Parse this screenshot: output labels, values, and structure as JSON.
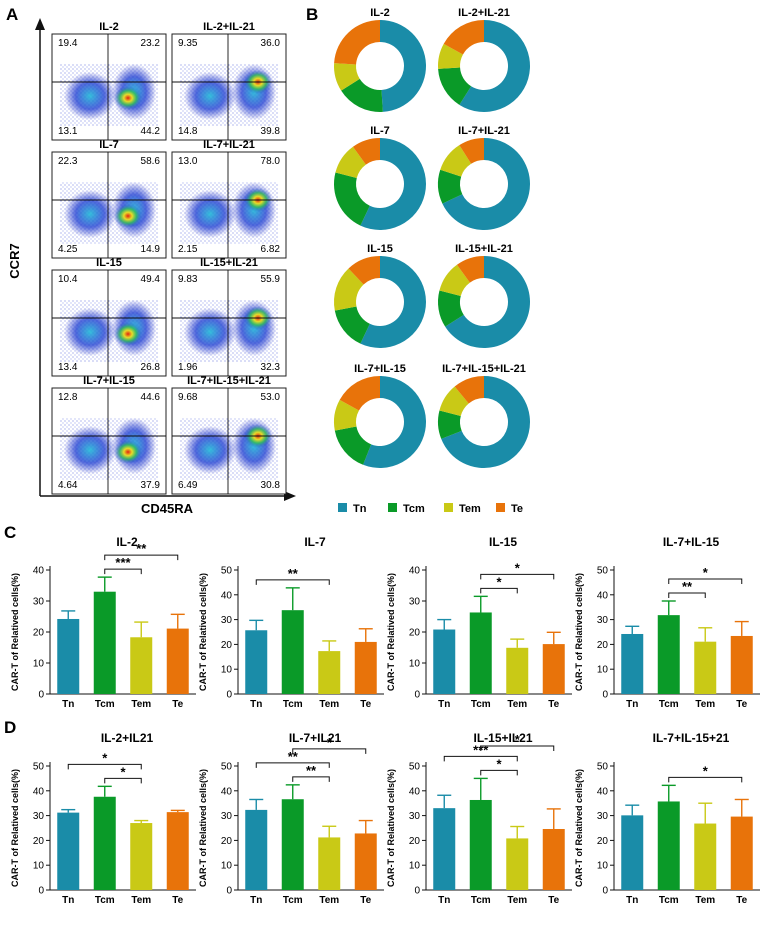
{
  "panel_labels": [
    "A",
    "B",
    "C",
    "D"
  ],
  "colors": {
    "Tn": "#1a8ca8",
    "Tcm": "#0a9a28",
    "Tem": "#c9c916",
    "Te": "#e8730a",
    "frame": "#222222",
    "text": "#111111"
  },
  "flow": {
    "y_axis_label": "CCR7",
    "x_axis_label": "CD45RA",
    "plots": [
      {
        "title": "IL-2",
        "q": [
          "19.4",
          "23.2",
          "13.1",
          "44.2"
        ]
      },
      {
        "title": "IL-2+IL-21",
        "q": [
          "9.35",
          "36.0",
          "14.8",
          "39.8"
        ]
      },
      {
        "title": "IL-7",
        "q": [
          "22.3",
          "58.6",
          "4.25",
          "14.9"
        ]
      },
      {
        "title": "IL-7+IL-21",
        "q": [
          "13.0",
          "78.0",
          "2.15",
          "6.82"
        ]
      },
      {
        "title": "IL-15",
        "q": [
          "10.4",
          "49.4",
          "13.4",
          "26.8"
        ]
      },
      {
        "title": "IL-15+IL-21",
        "q": [
          "9.83",
          "55.9",
          "1.96",
          "32.3"
        ]
      },
      {
        "title": "IL-7+IL-15",
        "q": [
          "12.8",
          "44.6",
          "4.64",
          "37.9"
        ]
      },
      {
        "title": "IL-7+IL-15+IL-21",
        "q": [
          "9.68",
          "53.0",
          "6.49",
          "30.8"
        ]
      }
    ]
  },
  "donut_legend": [
    "Tn",
    "Tcm",
    "Tem",
    "Te"
  ],
  "chart_data": [
    {
      "type": "pie",
      "panel": "B",
      "categories": [
        "Tn",
        "Tcm",
        "Tem",
        "Te"
      ],
      "charts": [
        {
          "title": "IL-2",
          "values": [
            49,
            17,
            10,
            24
          ]
        },
        {
          "title": "IL-2+IL-21",
          "values": [
            59,
            15,
            9,
            17
          ]
        },
        {
          "title": "IL-7",
          "values": [
            57,
            22,
            11,
            10
          ]
        },
        {
          "title": "IL-7+IL-21",
          "values": [
            68,
            12,
            11,
            9
          ]
        },
        {
          "title": "IL-15",
          "values": [
            57,
            15,
            16,
            12
          ]
        },
        {
          "title": "IL-15+IL-21",
          "values": [
            66,
            13,
            11,
            10
          ]
        },
        {
          "title": "IL-7+IL-15",
          "values": [
            56,
            16,
            11,
            17
          ]
        },
        {
          "title": "IL-7+IL-15+IL-21",
          "values": [
            69,
            10,
            10,
            11
          ]
        }
      ]
    },
    {
      "type": "bar",
      "panel": "C/D",
      "categories": [
        "Tn",
        "Tcm",
        "Tem",
        "Te"
      ],
      "ylabel": "CAR-T of Relatived cells(%)",
      "charts": [
        {
          "title": "IL-2",
          "ylim": [
            0,
            40
          ],
          "yticks": [
            0,
            10,
            20,
            30,
            40
          ],
          "values": [
            24.2,
            33.0,
            18.3,
            21.1
          ],
          "errors": [
            2.6,
            4.7,
            4.9,
            4.6
          ],
          "sig": [
            {
              "from": 1,
              "to": 2,
              "label": "***"
            },
            {
              "from": 1,
              "to": 3,
              "label": "**"
            }
          ]
        },
        {
          "title": "IL-7",
          "ylim": [
            0,
            50
          ],
          "yticks": [
            0,
            10,
            20,
            30,
            40,
            50
          ],
          "values": [
            25.7,
            33.8,
            17.3,
            21.0
          ],
          "errors": [
            4.0,
            9.0,
            4.1,
            5.3
          ],
          "sig": [
            {
              "from": 0,
              "to": 2,
              "label": "**"
            }
          ]
        },
        {
          "title": "IL-15",
          "ylim": [
            0,
            40
          ],
          "yticks": [
            0,
            10,
            20,
            30,
            40
          ],
          "values": [
            20.8,
            26.3,
            14.9,
            16.1
          ],
          "errors": [
            3.2,
            5.2,
            2.8,
            3.8
          ],
          "sig": [
            {
              "from": 1,
              "to": 2,
              "label": "*"
            },
            {
              "from": 1,
              "to": 3,
              "label": "*"
            }
          ]
        },
        {
          "title": "IL-7+IL-15",
          "ylim": [
            0,
            50
          ],
          "yticks": [
            0,
            10,
            20,
            30,
            40,
            50
          ],
          "values": [
            24.2,
            31.8,
            21.1,
            23.4
          ],
          "errors": [
            3.1,
            5.7,
            5.6,
            5.8
          ],
          "sig": [
            {
              "from": 1,
              "to": 2,
              "label": "**"
            },
            {
              "from": 1,
              "to": 3,
              "label": "*"
            }
          ]
        },
        {
          "title": "IL-2+IL21",
          "ylim": [
            0,
            50
          ],
          "yticks": [
            0,
            10,
            20,
            30,
            40,
            50
          ],
          "values": [
            31.2,
            37.6,
            27.0,
            31.4
          ],
          "errors": [
            1.2,
            4.2,
            1.0,
            0.7
          ],
          "sig": [
            {
              "from": 0,
              "to": 2,
              "label": "*"
            },
            {
              "from": 1,
              "to": 2,
              "label": "*"
            }
          ]
        },
        {
          "title": "IL-7+IL21",
          "ylim": [
            0,
            50
          ],
          "yticks": [
            0,
            10,
            20,
            30,
            40,
            50
          ],
          "values": [
            32.3,
            36.6,
            21.2,
            22.8
          ],
          "errors": [
            4.2,
            5.8,
            4.5,
            5.2
          ],
          "sig": [
            {
              "from": 0,
              "to": 2,
              "label": "**"
            },
            {
              "from": 1,
              "to": 2,
              "label": "**"
            },
            {
              "from": 1,
              "to": 3,
              "label": "*"
            }
          ]
        },
        {
          "title": "IL-15+IL21",
          "ylim": [
            0,
            50
          ],
          "yticks": [
            0,
            10,
            20,
            30,
            40,
            50
          ],
          "values": [
            33.0,
            36.3,
            20.8,
            24.6
          ],
          "errors": [
            5.2,
            8.7,
            4.8,
            8.1
          ],
          "sig": [
            {
              "from": 0,
              "to": 2,
              "label": "***"
            },
            {
              "from": 1,
              "to": 2,
              "label": "*"
            },
            {
              "from": 1,
              "to": 3,
              "label": "*"
            }
          ]
        },
        {
          "title": "IL-7+IL-15+21",
          "ylim": [
            0,
            50
          ],
          "yticks": [
            0,
            10,
            20,
            30,
            40,
            50
          ],
          "values": [
            30.1,
            35.7,
            26.8,
            29.6
          ],
          "errors": [
            4.1,
            6.5,
            8.2,
            6.9
          ],
          "sig": [
            {
              "from": 1,
              "to": 3,
              "label": "*"
            }
          ]
        }
      ]
    }
  ]
}
